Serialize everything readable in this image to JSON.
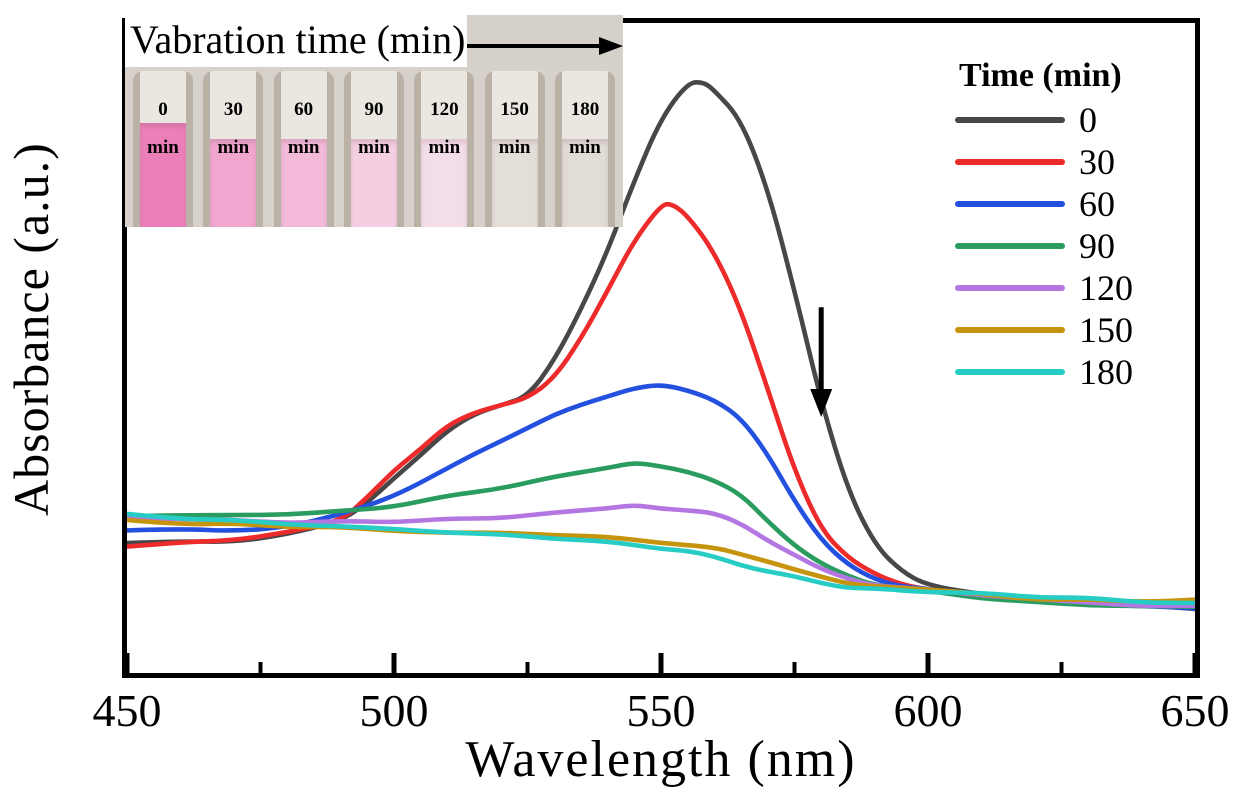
{
  "chart_data": {
    "type": "line",
    "title": "",
    "xlabel": "Wavelength (nm)",
    "ylabel": "Absorbance (a.u.)",
    "xlim": [
      450,
      650
    ],
    "x_major_ticks": [
      450,
      500,
      550,
      600,
      650
    ],
    "x_minor_ticks": [
      475,
      525,
      575,
      625
    ],
    "y_ticks": [],
    "grid": false,
    "legend_title": "Time (min)",
    "legend_position": "upper right",
    "annotation_arrow": {
      "x_nm": 580,
      "direction": "down",
      "a_from": 0.618,
      "a_to": 0.435
    },
    "axis_color": "#000000",
    "series": [
      {
        "name": "0",
        "color": "#474747",
        "points": [
          [
            450,
            0.225
          ],
          [
            460,
            0.227
          ],
          [
            470,
            0.23
          ],
          [
            480,
            0.238
          ],
          [
            490,
            0.263
          ],
          [
            495,
            0.29
          ],
          [
            500,
            0.33
          ],
          [
            505,
            0.372
          ],
          [
            510,
            0.413
          ],
          [
            515,
            0.438
          ],
          [
            520,
            0.455
          ],
          [
            525,
            0.472
          ],
          [
            530,
            0.53
          ],
          [
            535,
            0.613
          ],
          [
            540,
            0.713
          ],
          [
            545,
            0.83
          ],
          [
            550,
            0.93
          ],
          [
            555,
            0.99
          ],
          [
            558,
            0.993
          ],
          [
            560,
            0.98
          ],
          [
            565,
            0.93
          ],
          [
            570,
            0.813
          ],
          [
            575,
            0.647
          ],
          [
            580,
            0.463
          ],
          [
            585,
            0.313
          ],
          [
            590,
            0.222
          ],
          [
            595,
            0.18
          ],
          [
            600,
            0.155
          ],
          [
            610,
            0.138
          ],
          [
            620,
            0.13
          ],
          [
            630,
            0.125
          ],
          [
            640,
            0.122
          ],
          [
            650,
            0.118
          ]
        ]
      },
      {
        "name": "30",
        "color": "#ee2b2b",
        "points": [
          [
            450,
            0.222
          ],
          [
            460,
            0.224
          ],
          [
            470,
            0.23
          ],
          [
            480,
            0.24
          ],
          [
            490,
            0.263
          ],
          [
            495,
            0.3
          ],
          [
            500,
            0.347
          ],
          [
            505,
            0.385
          ],
          [
            510,
            0.422
          ],
          [
            515,
            0.44
          ],
          [
            520,
            0.455
          ],
          [
            525,
            0.467
          ],
          [
            530,
            0.497
          ],
          [
            535,
            0.563
          ],
          [
            540,
            0.647
          ],
          [
            545,
            0.73
          ],
          [
            550,
            0.787
          ],
          [
            552,
            0.79
          ],
          [
            555,
            0.772
          ],
          [
            560,
            0.713
          ],
          [
            565,
            0.613
          ],
          [
            570,
            0.48
          ],
          [
            575,
            0.347
          ],
          [
            580,
            0.247
          ],
          [
            585,
            0.197
          ],
          [
            590,
            0.172
          ],
          [
            595,
            0.157
          ],
          [
            600,
            0.147
          ],
          [
            610,
            0.137
          ],
          [
            620,
            0.13
          ],
          [
            630,
            0.124
          ],
          [
            640,
            0.12
          ],
          [
            650,
            0.118
          ]
        ]
      },
      {
        "name": "60",
        "color": "#2450e0",
        "points": [
          [
            450,
            0.247
          ],
          [
            460,
            0.247
          ],
          [
            470,
            0.247
          ],
          [
            480,
            0.252
          ],
          [
            490,
            0.272
          ],
          [
            500,
            0.302
          ],
          [
            510,
            0.347
          ],
          [
            515,
            0.372
          ],
          [
            520,
            0.397
          ],
          [
            525,
            0.418
          ],
          [
            530,
            0.438
          ],
          [
            535,
            0.457
          ],
          [
            540,
            0.472
          ],
          [
            545,
            0.482
          ],
          [
            550,
            0.487
          ],
          [
            555,
            0.48
          ],
          [
            560,
            0.463
          ],
          [
            565,
            0.43
          ],
          [
            570,
            0.372
          ],
          [
            575,
            0.297
          ],
          [
            580,
            0.23
          ],
          [
            585,
            0.188
          ],
          [
            590,
            0.167
          ],
          [
            595,
            0.155
          ],
          [
            600,
            0.147
          ],
          [
            610,
            0.136
          ],
          [
            620,
            0.128
          ],
          [
            630,
            0.123
          ],
          [
            640,
            0.12
          ],
          [
            650,
            0.118
          ]
        ]
      },
      {
        "name": "90",
        "color": "#2b9c60",
        "points": [
          [
            450,
            0.272
          ],
          [
            460,
            0.271
          ],
          [
            470,
            0.27
          ],
          [
            480,
            0.272
          ],
          [
            490,
            0.277
          ],
          [
            500,
            0.288
          ],
          [
            510,
            0.303
          ],
          [
            520,
            0.317
          ],
          [
            530,
            0.333
          ],
          [
            540,
            0.35
          ],
          [
            545,
            0.357
          ],
          [
            550,
            0.353
          ],
          [
            555,
            0.347
          ],
          [
            560,
            0.33
          ],
          [
            565,
            0.305
          ],
          [
            570,
            0.263
          ],
          [
            575,
            0.222
          ],
          [
            580,
            0.188
          ],
          [
            585,
            0.168
          ],
          [
            590,
            0.155
          ],
          [
            600,
            0.143
          ],
          [
            610,
            0.135
          ],
          [
            620,
            0.127
          ],
          [
            630,
            0.122
          ],
          [
            640,
            0.119
          ],
          [
            650,
            0.117
          ]
        ]
      },
      {
        "name": "120",
        "color": "#b477e2",
        "points": [
          [
            450,
            0.267
          ],
          [
            460,
            0.265
          ],
          [
            470,
            0.263
          ],
          [
            480,
            0.261
          ],
          [
            490,
            0.26
          ],
          [
            500,
            0.26
          ],
          [
            510,
            0.263
          ],
          [
            520,
            0.267
          ],
          [
            530,
            0.277
          ],
          [
            540,
            0.283
          ],
          [
            545,
            0.287
          ],
          [
            550,
            0.283
          ],
          [
            555,
            0.28
          ],
          [
            560,
            0.272
          ],
          [
            565,
            0.255
          ],
          [
            570,
            0.23
          ],
          [
            575,
            0.205
          ],
          [
            580,
            0.18
          ],
          [
            585,
            0.167
          ],
          [
            590,
            0.157
          ],
          [
            600,
            0.147
          ],
          [
            610,
            0.138
          ],
          [
            620,
            0.13
          ],
          [
            630,
            0.125
          ],
          [
            640,
            0.122
          ],
          [
            650,
            0.12
          ]
        ]
      },
      {
        "name": "150",
        "color": "#c5940c",
        "points": [
          [
            450,
            0.263
          ],
          [
            460,
            0.258
          ],
          [
            470,
            0.255
          ],
          [
            480,
            0.252
          ],
          [
            490,
            0.25
          ],
          [
            500,
            0.247
          ],
          [
            510,
            0.243
          ],
          [
            520,
            0.242
          ],
          [
            530,
            0.238
          ],
          [
            540,
            0.233
          ],
          [
            550,
            0.227
          ],
          [
            560,
            0.217
          ],
          [
            565,
            0.208
          ],
          [
            570,
            0.197
          ],
          [
            575,
            0.18
          ],
          [
            580,
            0.167
          ],
          [
            585,
            0.158
          ],
          [
            590,
            0.152
          ],
          [
            600,
            0.147
          ],
          [
            610,
            0.14
          ],
          [
            620,
            0.133
          ],
          [
            630,
            0.13
          ],
          [
            640,
            0.128
          ],
          [
            650,
            0.127
          ]
        ]
      },
      {
        "name": "180",
        "color": "#27ccc4",
        "points": [
          [
            450,
            0.27
          ],
          [
            460,
            0.266
          ],
          [
            470,
            0.263
          ],
          [
            480,
            0.258
          ],
          [
            490,
            0.253
          ],
          [
            500,
            0.247
          ],
          [
            510,
            0.242
          ],
          [
            520,
            0.238
          ],
          [
            530,
            0.235
          ],
          [
            540,
            0.227
          ],
          [
            550,
            0.217
          ],
          [
            555,
            0.21
          ],
          [
            560,
            0.2
          ],
          [
            565,
            0.188
          ],
          [
            570,
            0.177
          ],
          [
            575,
            0.167
          ],
          [
            580,
            0.158
          ],
          [
            585,
            0.153
          ],
          [
            590,
            0.15
          ],
          [
            600,
            0.145
          ],
          [
            610,
            0.14
          ],
          [
            620,
            0.135
          ],
          [
            630,
            0.131
          ],
          [
            640,
            0.128
          ],
          [
            650,
            0.125
          ]
        ]
      }
    ]
  },
  "inset": {
    "title": "Vabration time (min)",
    "arrow_direction": "right",
    "cuvettes": [
      {
        "time": "0",
        "unit": "min",
        "solution_color": "#ec7fba"
      },
      {
        "time": "30",
        "unit": "min",
        "solution_color": "#f0a6ce"
      },
      {
        "time": "60",
        "unit": "min",
        "solution_color": "#f2bad8"
      },
      {
        "time": "90",
        "unit": "min",
        "solution_color": "#f3cfe1"
      },
      {
        "time": "120",
        "unit": "min",
        "solution_color": "#f3dde9"
      },
      {
        "time": "150",
        "unit": "min",
        "solution_color": "#e4ded8"
      },
      {
        "time": "180",
        "unit": "min",
        "solution_color": "#e1dcd6"
      }
    ]
  }
}
